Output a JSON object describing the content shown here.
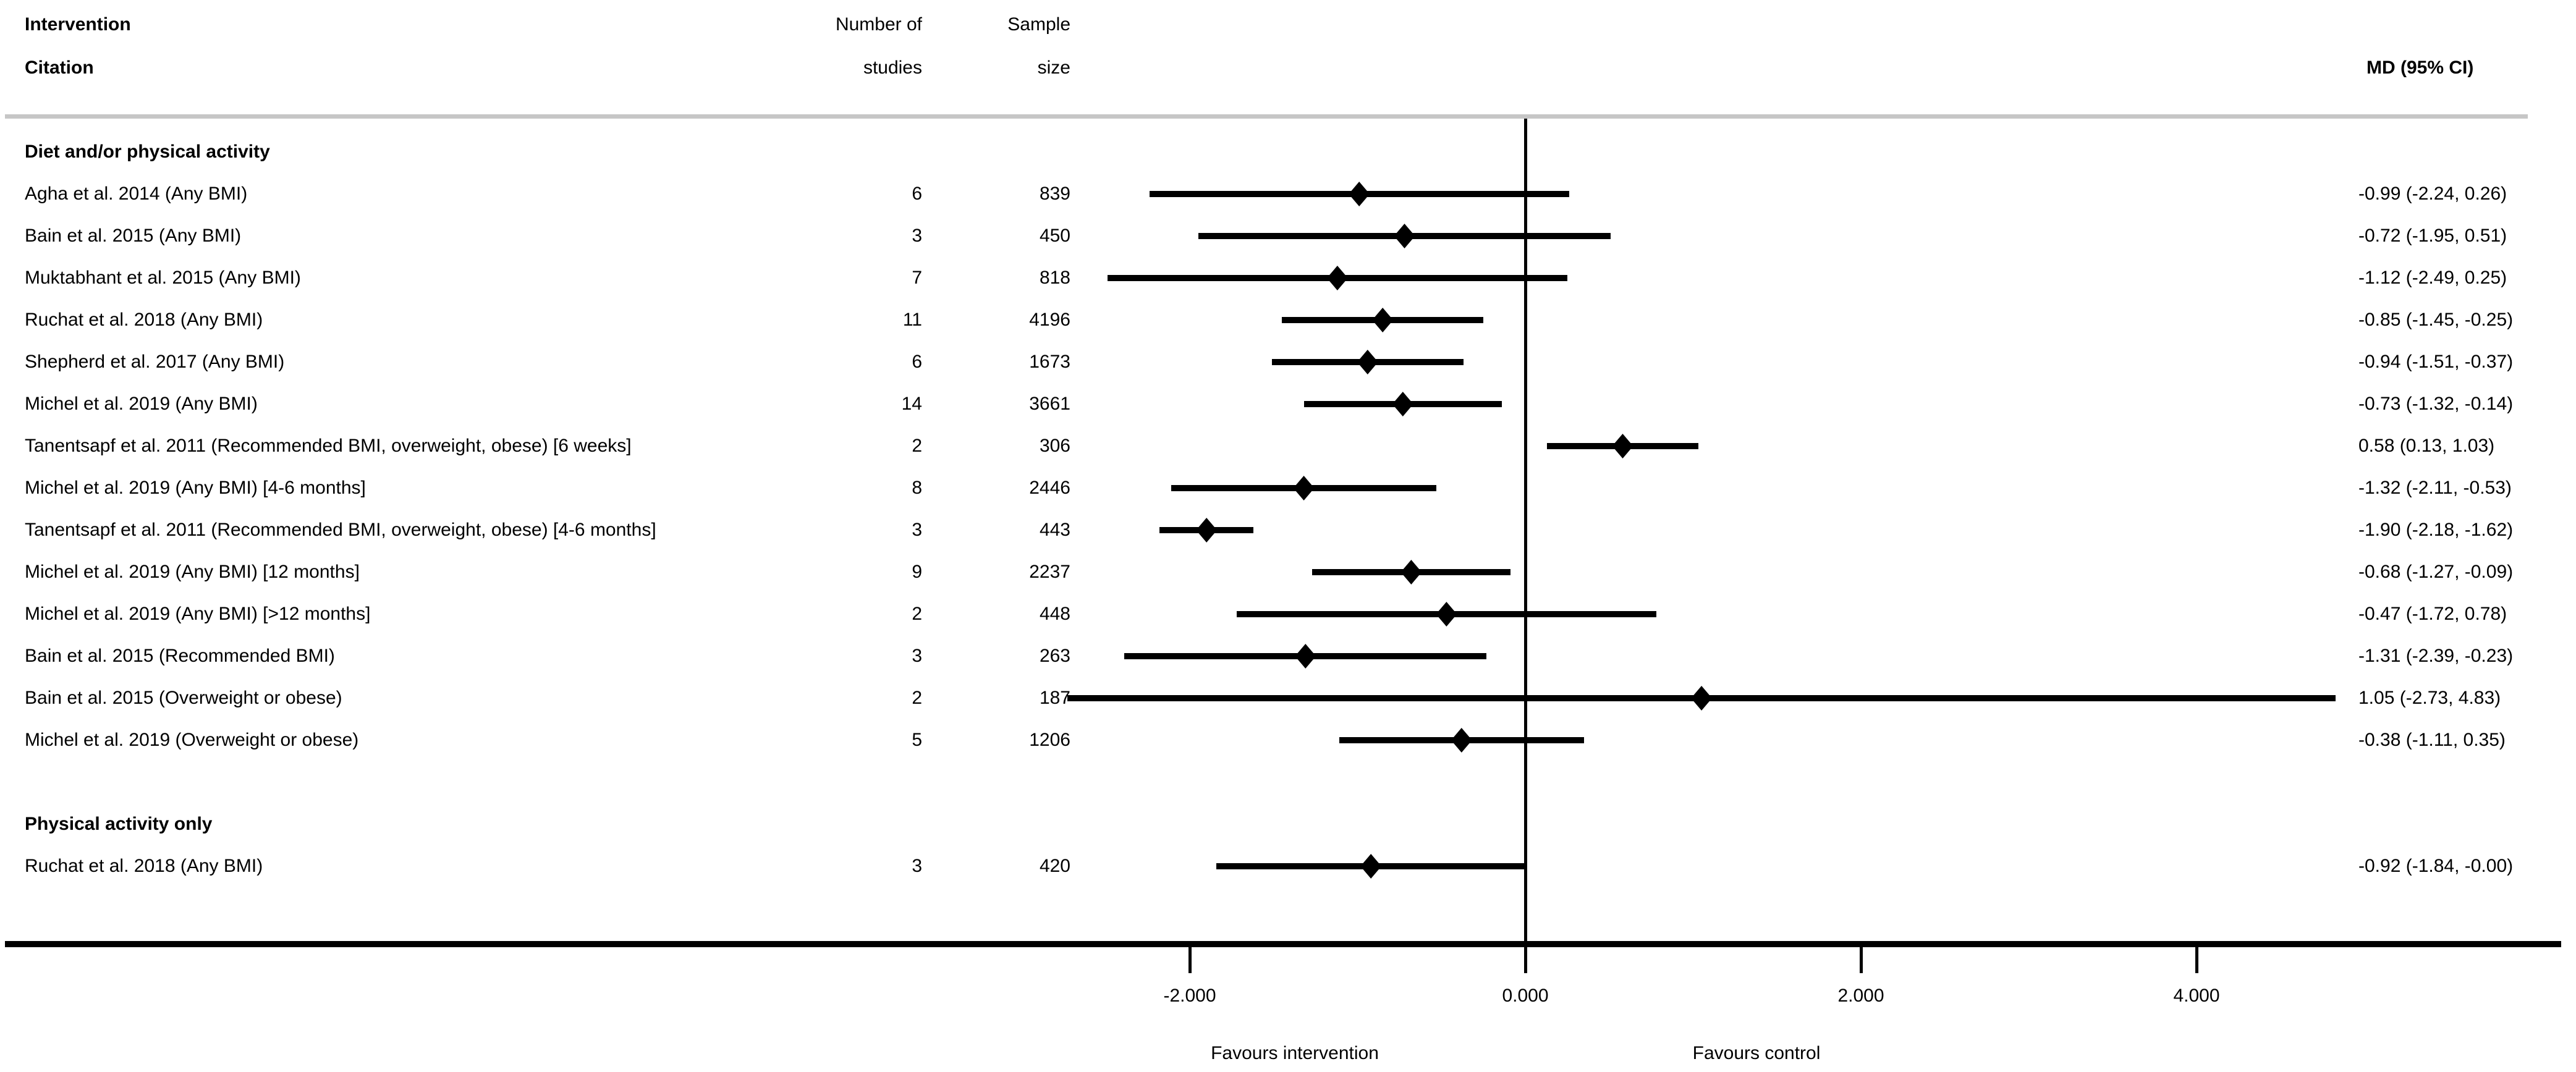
{
  "header": {
    "col_citation_line1": "Intervention",
    "col_citation_line2": "Citation",
    "col_studies_line1": "Number of",
    "col_studies_line2": "studies",
    "col_sample_line1": "Sample",
    "col_sample_line2": "size",
    "col_md": "MD (95% CI)"
  },
  "colors": {
    "ink": "#000000",
    "header_rule": "#c6c6c6",
    "background": "#ffffff"
  },
  "chart_data": {
    "type": "forest",
    "x_axis": {
      "ticks": [
        -2,
        0,
        2,
        4
      ],
      "tick_labels": [
        "-2.000",
        "0.000",
        "2.000",
        "4.000"
      ],
      "zero_line": 0,
      "xlim": [
        -2.73,
        4.83
      ]
    },
    "footer_labels": {
      "left": "Favours intervention",
      "right": "Favours control"
    },
    "groups": [
      {
        "label": "Diet and/or physical activity",
        "rows": [
          {
            "citation": "Agha et al. 2014 (Any BMI)",
            "n_studies": "6",
            "sample": "839",
            "md": -0.99,
            "ci_low": -2.24,
            "ci_high": 0.26,
            "md_label": "-0.99 (-2.24, 0.26)"
          },
          {
            "citation": "Bain  et al. 2015 (Any BMI)",
            "n_studies": "3",
            "sample": "450",
            "md": -0.72,
            "ci_low": -1.95,
            "ci_high": 0.51,
            "md_label": "-0.72 (-1.95, 0.51)"
          },
          {
            "citation": "Muktabhant et al. 2015 (Any BMI)",
            "n_studies": "7",
            "sample": "818",
            "md": -1.12,
            "ci_low": -2.49,
            "ci_high": 0.25,
            "md_label": "-1.12 (-2.49, 0.25)"
          },
          {
            "citation": "Ruchat et al. 2018 (Any BMI)",
            "n_studies": "11",
            "sample": "4196",
            "md": -0.85,
            "ci_low": -1.45,
            "ci_high": -0.25,
            "md_label": "-0.85 (-1.45, -0.25)"
          },
          {
            "citation": "Shepherd et al. 2017 (Any BMI)",
            "n_studies": "6",
            "sample": "1673",
            "md": -0.94,
            "ci_low": -1.51,
            "ci_high": -0.37,
            "md_label": "-0.94 (-1.51, -0.37)"
          },
          {
            "citation": "Michel et al. 2019 (Any BMI)",
            "n_studies": "14",
            "sample": "3661",
            "md": -0.73,
            "ci_low": -1.32,
            "ci_high": -0.14,
            "md_label": "-0.73 (-1.32, -0.14)"
          },
          {
            "citation": "Tanentsapf et al. 2011 (Recommended BMI, overweight, obese) [6 weeks]",
            "n_studies": "2",
            "sample": "306",
            "md": 0.58,
            "ci_low": 0.13,
            "ci_high": 1.03,
            "md_label": "0.58 (0.13, 1.03)"
          },
          {
            "citation": "Michel et al. 2019 (Any BMI) [4-6 months]",
            "n_studies": "8",
            "sample": "2446",
            "md": -1.32,
            "ci_low": -2.11,
            "ci_high": -0.53,
            "md_label": "-1.32 (-2.11, -0.53)"
          },
          {
            "citation": "Tanentsapf et al. 2011 (Recommended BMI, overweight, obese) [4-6 months]",
            "n_studies": "3",
            "sample": "443",
            "md": -1.9,
            "ci_low": -2.18,
            "ci_high": -1.62,
            "md_label": "-1.90 (-2.18, -1.62)"
          },
          {
            "citation": "Michel et al. 2019 (Any BMI) [12 months]",
            "n_studies": "9",
            "sample": "2237",
            "md": -0.68,
            "ci_low": -1.27,
            "ci_high": -0.09,
            "md_label": "-0.68 (-1.27, -0.09)"
          },
          {
            "citation": "Michel et al. 2019 (Any BMI) [>12 months]",
            "n_studies": "2",
            "sample": "448",
            "md": -0.47,
            "ci_low": -1.72,
            "ci_high": 0.78,
            "md_label": "-0.47 (-1.72, 0.78)"
          },
          {
            "citation": "Bain  et al. 2015 (Recommended BMI)",
            "n_studies": "3",
            "sample": "263",
            "md": -1.31,
            "ci_low": -2.39,
            "ci_high": -0.23,
            "md_label": "-1.31 (-2.39, -0.23)"
          },
          {
            "citation": "Bain  et al. 2015 (Overweight or obese)",
            "n_studies": "2",
            "sample": "187",
            "md": 1.05,
            "ci_low": -2.73,
            "ci_high": 4.83,
            "md_label": "1.05 (-2.73, 4.83)"
          },
          {
            "citation": "Michel et al. 2019 (Overweight or obese)",
            "n_studies": "5",
            "sample": "1206",
            "md": -0.38,
            "ci_low": -1.11,
            "ci_high": 0.35,
            "md_label": "-0.38 (-1.11, 0.35)"
          }
        ]
      },
      {
        "label": "Physical activity only",
        "rows": [
          {
            "citation": "Ruchat et al. 2018 (Any BMI)",
            "n_studies": "3",
            "sample": "420",
            "md": -0.92,
            "ci_low": -1.84,
            "ci_high": 0.0,
            "md_label": "-0.92 (-1.84, -0.00)"
          }
        ]
      }
    ]
  }
}
